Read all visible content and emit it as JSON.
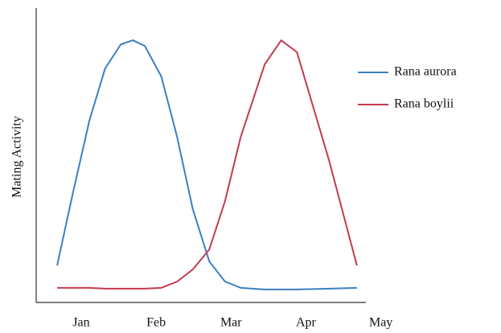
{
  "chart_data": {
    "type": "line",
    "y_label": "Mating Activity",
    "x": [
      0.68,
      0.89,
      1.11,
      1.32,
      1.53,
      1.69,
      1.85,
      2.07,
      2.28,
      2.49,
      2.71,
      2.92,
      3.13,
      3.45,
      3.67,
      3.88,
      4.31,
      4.68
    ],
    "xlim": [
      0.4,
      4.8
    ],
    "xticks": [
      {
        "value": 1,
        "label": "Jan"
      },
      {
        "value": 2,
        "label": "Feb"
      },
      {
        "value": 3,
        "label": "Mar"
      },
      {
        "value": 4,
        "label": "Apr"
      },
      {
        "value": 5,
        "label": "May"
      }
    ],
    "ylim": [
      0,
      100
    ],
    "series": [
      {
        "name": "Rana aurora",
        "color": "#3b7fc4",
        "values": [
          13.7,
          40.5,
          67.3,
          86.6,
          95.5,
          97,
          94.9,
          83.6,
          61.3,
          34.5,
          15.2,
          7.7,
          5.4,
          4.8,
          4.8,
          4.8,
          5.1,
          5.4
        ]
      },
      {
        "name": "Rana boylii",
        "color": "#c23b4e",
        "values": [
          5.4,
          5.4,
          5.4,
          5.1,
          5.1,
          5.1,
          5.1,
          5.4,
          7.7,
          12.2,
          19.6,
          37.5,
          61.3,
          88.1,
          97,
          92.6,
          52.4,
          13.7
        ]
      }
    ],
    "legend": "right"
  }
}
